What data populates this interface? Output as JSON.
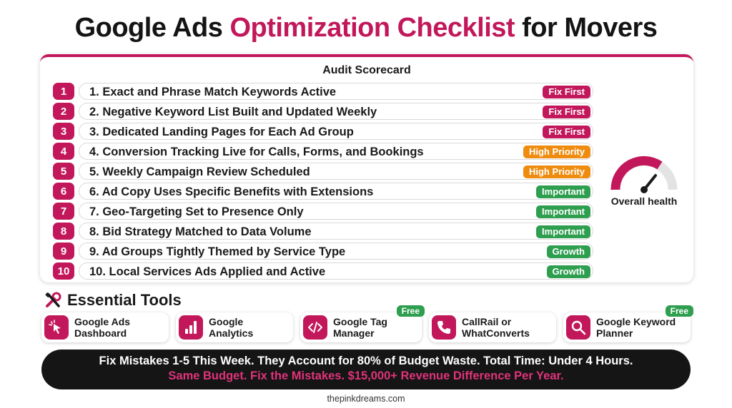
{
  "title": {
    "prefix": "Google Ads",
    "accent": "Optimization Checklist",
    "suffix": "for Movers"
  },
  "scorecard": {
    "title": "Audit Scorecard",
    "items": [
      {
        "num": "1",
        "text": "1. Exact and Phrase Match Keywords Active",
        "badge": "Fix First",
        "level": "fix"
      },
      {
        "num": "2",
        "text": "2. Negative Keyword List Built and Updated Weekly",
        "badge": "Fix First",
        "level": "fix"
      },
      {
        "num": "3",
        "text": "3. Dedicated Landing Pages for Each Ad Group",
        "badge": "Fix First",
        "level": "fix"
      },
      {
        "num": "4",
        "text": "4. Conversion Tracking Live for Calls, Forms, and Bookings",
        "badge": "High Priority",
        "level": "high"
      },
      {
        "num": "5",
        "text": "5. Weekly Campaign Review Scheduled",
        "badge": "High Priority",
        "level": "high"
      },
      {
        "num": "6",
        "text": "6. Ad Copy Uses Specific Benefits with Extensions",
        "badge": "Important",
        "level": "imp"
      },
      {
        "num": "7",
        "text": "7. Geo-Targeting Set to Presence Only",
        "badge": "Important",
        "level": "imp"
      },
      {
        "num": "8",
        "text": "8. Bid Strategy Matched to Data Volume",
        "badge": "Important",
        "level": "imp"
      },
      {
        "num": "9",
        "text": "9. Ad Groups Tightly Themed by Service Type",
        "badge": "Growth",
        "level": "grow"
      },
      {
        "num": "10",
        "text": "10. Local Services Ads Applied and Active",
        "badge": "Growth",
        "level": "grow"
      }
    ],
    "gauge_label": "Overall health"
  },
  "tools": {
    "title": "Essential Tools",
    "items": [
      {
        "line1": "Google Ads",
        "line2": "Dashboard",
        "icon": "cursor-click-icon",
        "free": ""
      },
      {
        "line1": "Google",
        "line2": "Analytics",
        "icon": "bar-chart-icon",
        "free": ""
      },
      {
        "line1": "Google Tag",
        "line2": "Manager",
        "icon": "code-icon",
        "free": "Free"
      },
      {
        "line1": "CallRail or",
        "line2": "WhatConverts",
        "icon": "phone-icon",
        "free": ""
      },
      {
        "line1": "Google Keyword",
        "line2": "Planner",
        "icon": "search-icon",
        "free": "Free"
      }
    ]
  },
  "banner": {
    "line1": "Fix Mistakes 1-5 This Week. They Account for 80% of Budget Waste. Total Time: Under 4 Hours.",
    "line2": "Same Budget. Fix the Mistakes. $15,000+ Revenue Difference Per Year."
  },
  "footer": "thepinkdreams.com",
  "colors": {
    "accent": "#c2185b",
    "high": "#ef8c10",
    "green": "#2e9e4f",
    "dark": "#151515"
  }
}
